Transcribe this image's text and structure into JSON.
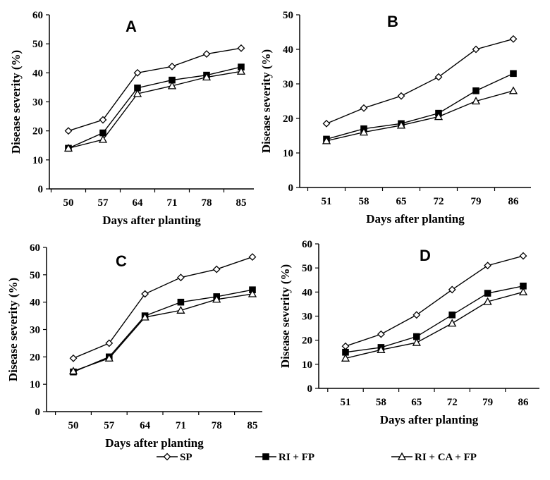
{
  "chart_data": [
    {
      "type": "line",
      "title": "A",
      "xlabel": "Days after planting",
      "ylabel": "Disease severity (%)",
      "x": [
        50,
        57,
        64,
        71,
        78,
        85
      ],
      "ylim": [
        0,
        60
      ],
      "yticks": [
        0,
        10,
        20,
        30,
        40,
        50,
        60
      ],
      "grid": false,
      "series": [
        {
          "name": "SP",
          "marker": "diamond-open",
          "values": [
            20,
            23.8,
            40,
            42.2,
            46.5,
            48.5
          ]
        },
        {
          "name": "RI + FP",
          "marker": "square-filled",
          "values": [
            14,
            19.3,
            34.8,
            37.5,
            39.2,
            42
          ]
        },
        {
          "name": "RI + CA + FP",
          "marker": "triangle-open",
          "values": [
            14,
            17,
            32.8,
            35.5,
            38.5,
            40.5
          ]
        }
      ]
    },
    {
      "type": "line",
      "title": "B",
      "xlabel": "Days after planting",
      "ylabel": "Disease severity (%)",
      "x": [
        51,
        58,
        65,
        72,
        79,
        86
      ],
      "ylim": [
        0,
        50
      ],
      "yticks": [
        0,
        10,
        20,
        30,
        40,
        50
      ],
      "grid": false,
      "series": [
        {
          "name": "SP",
          "marker": "diamond-open",
          "values": [
            18.5,
            23,
            26.5,
            32,
            40,
            43
          ]
        },
        {
          "name": "RI + FP",
          "marker": "square-filled",
          "values": [
            14,
            17,
            18.5,
            21.5,
            28,
            33
          ]
        },
        {
          "name": "RI + CA + FP",
          "marker": "triangle-open",
          "values": [
            13.5,
            16,
            18,
            20.5,
            25,
            28
          ]
        }
      ]
    },
    {
      "type": "line",
      "title": "C",
      "xlabel": "Days after planting",
      "ylabel": "Disease severity (%)",
      "x": [
        50,
        57,
        64,
        71,
        78,
        85
      ],
      "ylim": [
        0,
        60
      ],
      "yticks": [
        0,
        10,
        20,
        30,
        40,
        50,
        60
      ],
      "grid": false,
      "series": [
        {
          "name": "SP",
          "marker": "diamond-open",
          "values": [
            19.5,
            25,
            43,
            49,
            52,
            56.5
          ]
        },
        {
          "name": "RI + FP",
          "marker": "square-filled",
          "values": [
            14.5,
            20,
            35,
            40,
            42,
            44.5
          ]
        },
        {
          "name": "RI + CA + FP",
          "marker": "triangle-open",
          "values": [
            14.8,
            19.5,
            34.5,
            37,
            41,
            43
          ]
        }
      ]
    },
    {
      "type": "line",
      "title": "D",
      "xlabel": "Days after planting",
      "ylabel": "Disease severity (%)",
      "x": [
        51,
        58,
        65,
        72,
        79,
        86
      ],
      "ylim": [
        0,
        60
      ],
      "yticks": [
        0,
        10,
        20,
        30,
        40,
        50,
        60
      ],
      "grid": false,
      "series": [
        {
          "name": "SP",
          "marker": "diamond-open",
          "values": [
            17.5,
            22.5,
            30.5,
            41,
            51,
            55
          ]
        },
        {
          "name": "RI + FP",
          "marker": "square-filled",
          "values": [
            15,
            17,
            21.5,
            30.5,
            39.5,
            42.5
          ]
        },
        {
          "name": "RI + CA + FP",
          "marker": "triangle-open",
          "values": [
            12.5,
            16,
            19,
            27,
            36,
            40
          ]
        }
      ]
    }
  ],
  "legend": {
    "placement": "bottom",
    "items": [
      {
        "label": "SP",
        "marker": "diamond-open"
      },
      {
        "label": "RI + FP",
        "marker": "square-filled"
      },
      {
        "label": "RI + CA + FP",
        "marker": "triangle-open"
      }
    ]
  }
}
